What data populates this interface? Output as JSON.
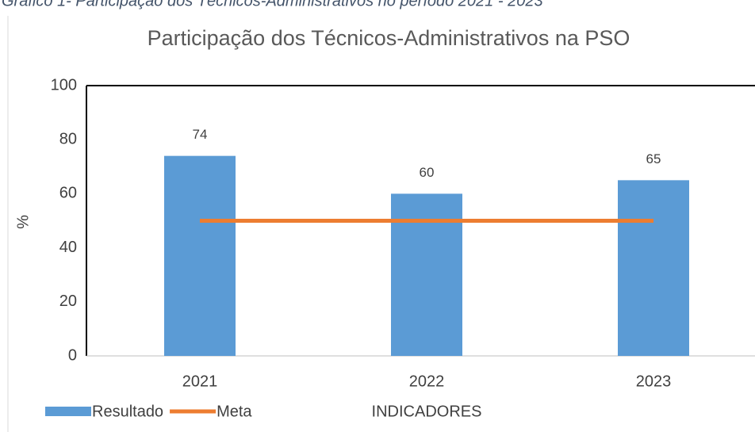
{
  "chart_data": {
    "type": "bar",
    "caption": "Gráfico 1- Participação dos Técnicos-Administrativos no período 2021 - 2023",
    "title": "Participação dos Técnicos-Administrativos na PSO",
    "y_label": "%",
    "x_label": "INDICADORES",
    "categories": [
      "2021",
      "2022",
      "2023"
    ],
    "series": [
      {
        "name": "Resultado",
        "type": "bar",
        "color": "#5b9bd5",
        "values": [
          74,
          60,
          65
        ],
        "show_values": true
      },
      {
        "name": "Meta",
        "type": "line",
        "color": "#ed7d31",
        "values": [
          50,
          50,
          50
        ],
        "show_values": false
      }
    ],
    "ylim": [
      0,
      100
    ],
    "yticks": [
      0,
      20,
      40,
      60,
      80,
      100
    ],
    "grid": false,
    "legend": "bottom-left"
  }
}
